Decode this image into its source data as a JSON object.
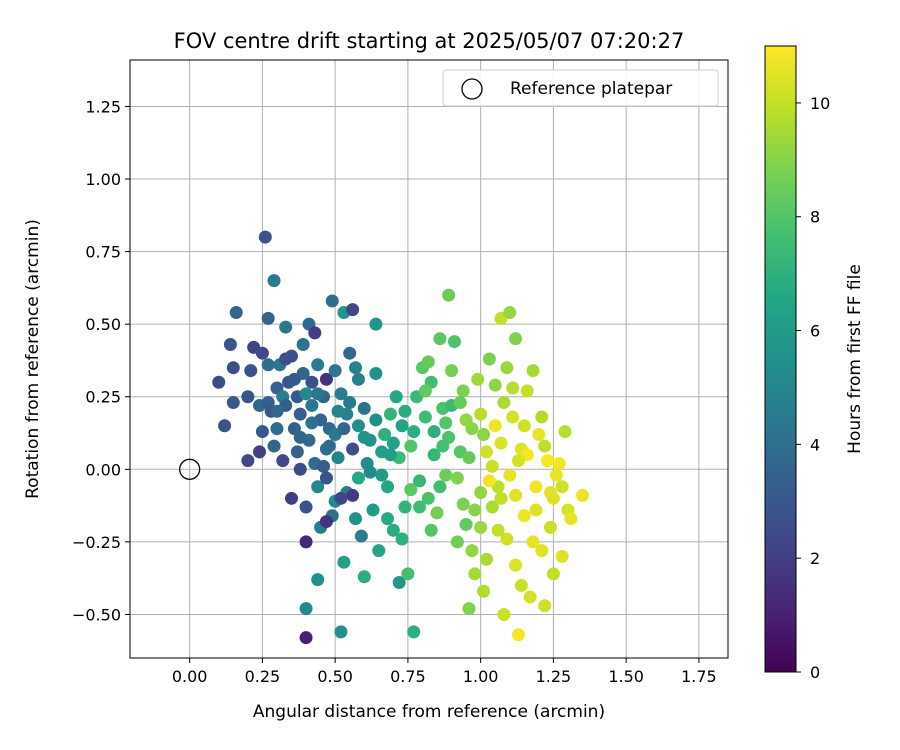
{
  "chart_data": {
    "type": "scatter",
    "title": "FOV centre drift starting at 2025/05/07 07:20:27",
    "xlabel": "Angular distance from reference (arcmin)",
    "ylabel": "Rotation from reference (arcmin)",
    "xlim": [
      -0.205,
      1.85
    ],
    "ylim": [
      -0.65,
      1.41
    ],
    "xticks": [
      0.0,
      0.25,
      0.5,
      0.75,
      1.0,
      1.25,
      1.5,
      1.75
    ],
    "xtick_labels": [
      "0.00",
      "0.25",
      "0.50",
      "0.75",
      "1.00",
      "1.25",
      "1.50",
      "1.75"
    ],
    "yticks": [
      -0.5,
      -0.25,
      0.0,
      0.25,
      0.5,
      0.75,
      1.0,
      1.25
    ],
    "ytick_labels": [
      "−0.50",
      "−0.25",
      "0.00",
      "0.25",
      "0.50",
      "0.75",
      "1.00",
      "1.25"
    ],
    "grid": true,
    "legend": {
      "placement": "top-right",
      "entries": [
        "Reference platepar"
      ]
    },
    "reference": {
      "name": "Reference platepar",
      "x": 0.0,
      "y": 0.0,
      "marker": "open-circle"
    },
    "colorbar": {
      "label": "Hours from first FF file",
      "colormap": "viridis",
      "range": [
        0,
        11
      ],
      "ticks": [
        0,
        2,
        4,
        6,
        8,
        10
      ],
      "tick_labels": [
        "0",
        "2",
        "4",
        "6",
        "8",
        "10"
      ]
    },
    "series": [
      {
        "columns": [
          "x",
          "y",
          "hours"
        ],
        "points": [
          [
            0.1,
            0.3,
            2.5
          ],
          [
            0.12,
            0.15,
            2.7
          ],
          [
            0.14,
            0.43,
            2.9
          ],
          [
            0.15,
            0.35,
            2.6
          ],
          [
            0.16,
            0.54,
            3.5
          ],
          [
            0.15,
            0.23,
            3.0
          ],
          [
            0.2,
            0.03,
            2.3
          ],
          [
            0.2,
            0.25,
            2.9
          ],
          [
            0.21,
            0.34,
            2.8
          ],
          [
            0.22,
            0.42,
            2.2
          ],
          [
            0.24,
            0.22,
            3.6
          ],
          [
            0.24,
            0.06,
            2.1
          ],
          [
            0.25,
            0.4,
            2.4
          ],
          [
            0.26,
            0.8,
            2.7
          ],
          [
            0.27,
            0.52,
            3.5
          ],
          [
            0.27,
            0.23,
            3.3
          ],
          [
            0.27,
            0.36,
            4.0
          ],
          [
            0.28,
            0.2,
            3.0
          ],
          [
            0.29,
            0.65,
            4.5
          ],
          [
            0.29,
            0.08,
            3.5
          ],
          [
            0.3,
            0.28,
            3.4
          ],
          [
            0.3,
            0.14,
            3.9
          ],
          [
            0.31,
            0.36,
            4.3
          ],
          [
            0.32,
            0.25,
            4.6
          ],
          [
            0.33,
            0.38,
            2.6
          ],
          [
            0.33,
            0.22,
            3.2
          ],
          [
            0.33,
            0.49,
            4.4
          ],
          [
            0.34,
            0.3,
            2.9
          ],
          [
            0.35,
            0.39,
            2.7
          ],
          [
            0.36,
            0.14,
            3.3
          ],
          [
            0.37,
            0.25,
            3.0
          ],
          [
            0.37,
            0.06,
            3.4
          ],
          [
            0.38,
            0.0,
            2.5
          ],
          [
            0.38,
            0.19,
            3.2
          ],
          [
            0.39,
            0.33,
            3.6
          ],
          [
            0.39,
            0.43,
            4.2
          ],
          [
            0.4,
            0.26,
            5.1
          ],
          [
            0.4,
            -0.13,
            2.8
          ],
          [
            0.41,
            0.1,
            3.8
          ],
          [
            0.41,
            0.5,
            3.8
          ],
          [
            0.42,
            0.22,
            4.4
          ],
          [
            0.42,
            0.3,
            2.7
          ],
          [
            0.43,
            0.47,
            2.0
          ],
          [
            0.43,
            0.02,
            3.9
          ],
          [
            0.44,
            0.36,
            4.6
          ],
          [
            0.44,
            -0.06,
            5.0
          ],
          [
            0.45,
            0.17,
            3.4
          ],
          [
            0.45,
            -0.2,
            4.6
          ],
          [
            0.46,
            0.25,
            3.5
          ],
          [
            0.46,
            0.01,
            3.2
          ],
          [
            0.47,
            0.31,
            1.5
          ],
          [
            0.47,
            0.07,
            4.1
          ],
          [
            0.48,
            0.14,
            3.7
          ],
          [
            0.49,
            0.58,
            4.0
          ],
          [
            0.49,
            -0.16,
            4.0
          ],
          [
            0.5,
            0.34,
            4.3
          ],
          [
            0.5,
            0.12,
            4.4
          ],
          [
            0.5,
            -0.11,
            5.2
          ],
          [
            0.51,
            0.2,
            5.0
          ],
          [
            0.51,
            0.04,
            4.9
          ],
          [
            0.52,
            0.26,
            4.7
          ],
          [
            0.52,
            -0.56,
            5.5
          ],
          [
            0.53,
            0.54,
            5.8
          ],
          [
            0.53,
            0.14,
            3.6
          ],
          [
            0.54,
            -0.08,
            4.8
          ],
          [
            0.55,
            0.4,
            3.7
          ],
          [
            0.55,
            0.23,
            4.5
          ],
          [
            0.56,
            0.55,
            2.3
          ],
          [
            0.56,
            0.07,
            2.6
          ],
          [
            0.57,
            -0.17,
            5.6
          ],
          [
            0.57,
            0.35,
            4.8
          ],
          [
            0.58,
            0.15,
            5.4
          ],
          [
            0.58,
            -0.03,
            6.6
          ],
          [
            0.59,
            -0.23,
            4.6
          ],
          [
            0.6,
            0.21,
            4.2
          ],
          [
            0.6,
            -0.37,
            6.9
          ],
          [
            0.61,
            0.02,
            5.3
          ],
          [
            0.62,
            0.1,
            5.7
          ],
          [
            0.63,
            -0.14,
            6.0
          ],
          [
            0.64,
            0.5,
            5.7
          ],
          [
            0.64,
            0.33,
            5.5
          ],
          [
            0.65,
            -0.28,
            6.5
          ],
          [
            0.66,
            0.06,
            6.2
          ],
          [
            0.67,
            0.12,
            7.0
          ],
          [
            0.68,
            -0.06,
            6.5
          ],
          [
            0.69,
            0.19,
            7.2
          ],
          [
            0.7,
            -0.21,
            6.8
          ],
          [
            0.71,
            0.25,
            6.6
          ],
          [
            0.72,
            -0.39,
            5.8
          ],
          [
            0.72,
            0.04,
            7.4
          ],
          [
            0.73,
            0.15,
            6.3
          ],
          [
            0.74,
            -0.13,
            7.1
          ],
          [
            0.75,
            -0.36,
            7.7
          ],
          [
            0.76,
            0.08,
            8.0
          ],
          [
            0.77,
            -0.56,
            6.9
          ],
          [
            0.78,
            0.25,
            7.4
          ],
          [
            0.79,
            -0.04,
            7.3
          ],
          [
            0.8,
            0.35,
            8.1
          ],
          [
            0.81,
            0.18,
            7.5
          ],
          [
            0.82,
            -0.1,
            7.8
          ],
          [
            0.82,
            0.37,
            8.4
          ],
          [
            0.83,
            0.3,
            7.6
          ],
          [
            0.84,
            0.05,
            7.2
          ],
          [
            0.85,
            -0.15,
            8.7
          ],
          [
            0.86,
            0.45,
            8.2
          ],
          [
            0.87,
            0.21,
            7.8
          ],
          [
            0.88,
            -0.02,
            8.5
          ],
          [
            0.89,
            0.6,
            8.5
          ],
          [
            0.89,
            0.11,
            7.9
          ],
          [
            0.9,
            0.34,
            8.7
          ],
          [
            0.91,
            0.44,
            7.9
          ],
          [
            0.92,
            -0.25,
            8.6
          ],
          [
            0.93,
            0.06,
            8.1
          ],
          [
            0.94,
            0.27,
            8.8
          ],
          [
            0.95,
            -0.19,
            8.3
          ],
          [
            0.96,
            -0.48,
            8.9
          ],
          [
            0.97,
            0.14,
            9.0
          ],
          [
            0.98,
            -0.36,
            9.5
          ],
          [
            0.99,
            0.31,
            9.4
          ],
          [
            1.0,
            -0.08,
            9.2
          ],
          [
            1.0,
            0.19,
            9.8
          ],
          [
            1.01,
            -0.42,
            9.7
          ],
          [
            1.02,
            0.06,
            10.2
          ],
          [
            1.03,
            0.38,
            8.8
          ],
          [
            1.04,
            -0.13,
            9.6
          ],
          [
            1.05,
            0.29,
            9.1
          ],
          [
            1.06,
            -0.21,
            10.0
          ],
          [
            1.07,
            0.52,
            10.0
          ],
          [
            1.07,
            0.09,
            10.4
          ],
          [
            1.08,
            -0.5,
            10.1
          ],
          [
            1.09,
            0.35,
            9.3
          ],
          [
            1.1,
            -0.02,
            10.6
          ],
          [
            1.1,
            0.54,
            9.2
          ],
          [
            1.11,
            0.18,
            10.3
          ],
          [
            1.12,
            -0.33,
            10.4
          ],
          [
            1.12,
            0.45,
            8.9
          ],
          [
            1.13,
            -0.57,
            10.9
          ],
          [
            1.14,
            0.07,
            10.5
          ],
          [
            1.15,
            -0.16,
            10.7
          ],
          [
            1.16,
            0.27,
            10.0
          ],
          [
            1.17,
            -0.44,
            10.3
          ],
          [
            1.18,
            0.34,
            9.5
          ],
          [
            1.19,
            -0.06,
            10.8
          ],
          [
            1.2,
            0.12,
            10.6
          ],
          [
            1.21,
            -0.28,
            10.5
          ],
          [
            1.22,
            -0.47,
            10.2
          ],
          [
            1.23,
            0.03,
            10.9
          ],
          [
            1.24,
            -0.2,
            10.1
          ],
          [
            1.25,
            -0.1,
            10.4
          ],
          [
            1.27,
            0.02,
            10.8
          ],
          [
            1.28,
            -0.3,
            10.5
          ],
          [
            1.29,
            0.13,
            9.8
          ],
          [
            1.3,
            -0.14,
            10.3
          ],
          [
            1.31,
            -0.17,
            10.6
          ],
          [
            1.35,
            -0.09,
            10.7
          ],
          [
            0.35,
            -0.1,
            2.0
          ],
          [
            0.4,
            -0.58,
            1.0
          ],
          [
            0.4,
            -0.25,
            1.2
          ],
          [
            0.4,
            -0.48,
            5.0
          ],
          [
            0.44,
            -0.38,
            5.5
          ],
          [
            0.53,
            -0.32,
            6.2
          ],
          [
            0.56,
            -0.09,
            1.9
          ],
          [
            0.47,
            -0.18,
            1.6
          ],
          [
            0.52,
            -0.1,
            2.2
          ],
          [
            0.47,
            -0.03,
            2.8
          ],
          [
            0.62,
            -0.01,
            5.1
          ],
          [
            0.68,
            -0.17,
            6.7
          ],
          [
            0.76,
            -0.07,
            8.2
          ],
          [
            0.83,
            -0.21,
            8.0
          ],
          [
            0.94,
            -0.12,
            8.8
          ],
          [
            0.97,
            -0.28,
            9.2
          ],
          [
            1.02,
            -0.31,
            9.6
          ],
          [
            1.06,
            -0.06,
            9.9
          ],
          [
            1.09,
            -0.24,
            10.2
          ],
          [
            1.14,
            -0.4,
            10.1
          ],
          [
            1.18,
            -0.25,
            10.6
          ],
          [
            1.25,
            -0.36,
            9.9
          ],
          [
            1.28,
            -0.06,
            10.2
          ],
          [
            0.84,
            0.13,
            7.0
          ],
          [
            0.9,
            0.22,
            7.4
          ],
          [
            0.96,
            0.04,
            8.4
          ],
          [
            1.01,
            0.12,
            9.1
          ],
          [
            1.04,
            0.01,
            10.1
          ],
          [
            1.08,
            0.23,
            9.6
          ],
          [
            1.12,
            -0.09,
            10.5
          ],
          [
            1.16,
            0.05,
            10.9
          ],
          [
            1.19,
            -0.14,
            10.4
          ],
          [
            1.22,
            0.08,
            9.9
          ],
          [
            1.26,
            -0.02,
            10.6
          ],
          [
            0.7,
            0.09,
            6.3
          ],
          [
            0.74,
            0.2,
            6.8
          ],
          [
            0.79,
            -0.13,
            7.5
          ],
          [
            0.86,
            -0.06,
            7.6
          ],
          [
            0.92,
            -0.03,
            8.9
          ],
          [
            0.98,
            -0.14,
            9.0
          ],
          [
            1.05,
            0.15,
            10.7
          ],
          [
            1.13,
            0.03,
            10.3
          ],
          [
            1.21,
            0.18,
            9.7
          ],
          [
            0.66,
            -0.02,
            6.0
          ],
          [
            0.73,
            -0.24,
            7.0
          ],
          [
            0.81,
            0.27,
            8.3
          ],
          [
            0.88,
            0.16,
            8.0
          ],
          [
            0.95,
            0.17,
            9.2
          ],
          [
            1.03,
            -0.04,
            10.8
          ],
          [
            1.11,
            0.28,
            9.8
          ],
          [
            0.58,
            0.31,
            4.8
          ],
          [
            0.64,
            0.17,
            5.4
          ],
          [
            0.69,
            0.05,
            6.1
          ],
          [
            0.77,
            0.13,
            6.9
          ],
          [
            0.87,
            0.08,
            7.7
          ],
          [
            0.93,
            0.23,
            8.4
          ],
          [
            1.0,
            -0.2,
            9.3
          ],
          [
            1.07,
            -0.1,
            10.0
          ],
          [
            1.15,
            0.15,
            10.2
          ],
          [
            1.24,
            -0.08,
            10.5
          ],
          [
            0.3,
            0.2,
            3.7
          ],
          [
            0.36,
            0.31,
            3.1
          ],
          [
            0.42,
            0.16,
            4.1
          ],
          [
            0.48,
            0.08,
            3.8
          ],
          [
            0.54,
            0.19,
            4.9
          ],
          [
            0.6,
            0.11,
            5.6
          ],
          [
            0.25,
            0.13,
            3.1
          ],
          [
            0.32,
            0.03,
            2.4
          ],
          [
            0.38,
            0.11,
            3.6
          ],
          [
            0.44,
            0.26,
            4.3
          ]
        ]
      }
    ]
  }
}
